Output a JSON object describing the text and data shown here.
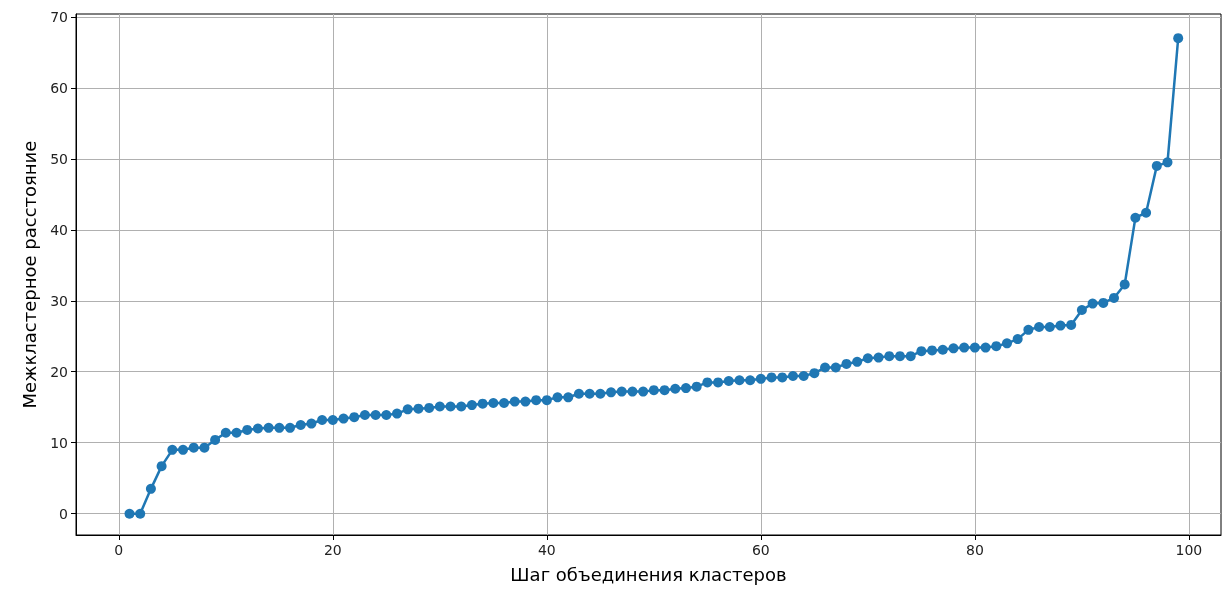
{
  "chart_data": {
    "type": "line",
    "xlabel": "Шаг объединения кластеров",
    "ylabel": "Межкластерное расстояние",
    "x": [
      1,
      2,
      3,
      4,
      5,
      6,
      7,
      8,
      9,
      10,
      11,
      12,
      13,
      14,
      15,
      16,
      17,
      18,
      19,
      20,
      21,
      22,
      23,
      24,
      25,
      26,
      27,
      28,
      29,
      30,
      31,
      32,
      33,
      34,
      35,
      36,
      37,
      38,
      39,
      40,
      41,
      42,
      43,
      44,
      45,
      46,
      47,
      48,
      49,
      50,
      51,
      52,
      53,
      54,
      55,
      56,
      57,
      58,
      59,
      60,
      61,
      62,
      63,
      64,
      65,
      66,
      67,
      68,
      69,
      70,
      71,
      72,
      73,
      74,
      75,
      76,
      77,
      78,
      79,
      80,
      81,
      82,
      83,
      84,
      85,
      86,
      87,
      88,
      89,
      90,
      91,
      92,
      93,
      94,
      95,
      96,
      97,
      98,
      99
    ],
    "series": [
      {
        "color": "#1f77b4",
        "values": [
          0,
          0,
          3.5,
          6.7,
          9.0,
          9.0,
          9.3,
          9.3,
          10.4,
          11.4,
          11.4,
          11.8,
          12.0,
          12.1,
          12.1,
          12.1,
          12.5,
          12.7,
          13.2,
          13.2,
          13.4,
          13.6,
          13.9,
          13.9,
          13.9,
          14.1,
          14.7,
          14.8,
          14.9,
          15.1,
          15.1,
          15.1,
          15.3,
          15.5,
          15.6,
          15.6,
          15.8,
          15.8,
          16.0,
          16.0,
          16.4,
          16.4,
          16.9,
          16.9,
          16.9,
          17.1,
          17.2,
          17.2,
          17.2,
          17.4,
          17.4,
          17.6,
          17.7,
          17.9,
          18.5,
          18.5,
          18.7,
          18.8,
          18.8,
          19.0,
          19.2,
          19.2,
          19.4,
          19.4,
          19.8,
          20.6,
          20.6,
          21.1,
          21.4,
          21.9,
          22.0,
          22.2,
          22.2,
          22.2,
          22.9,
          23.0,
          23.1,
          23.3,
          23.4,
          23.4,
          23.4,
          23.6,
          24.0,
          24.6,
          25.9,
          26.3,
          26.3,
          26.5,
          26.6,
          28.7,
          29.6,
          29.7,
          30.4,
          32.3,
          41.7,
          42.4,
          49.0,
          49.5,
          67.0
        ]
      }
    ],
    "xlim": [
      -4,
      103
    ],
    "xticks": [
      0,
      20,
      40,
      60,
      80,
      100
    ],
    "ylim": [
      -3,
      70.4
    ],
    "yticks": [
      0,
      10,
      20,
      30,
      40,
      50,
      60,
      70
    ],
    "grid": true,
    "marker": "circle",
    "line_style": "solid"
  }
}
